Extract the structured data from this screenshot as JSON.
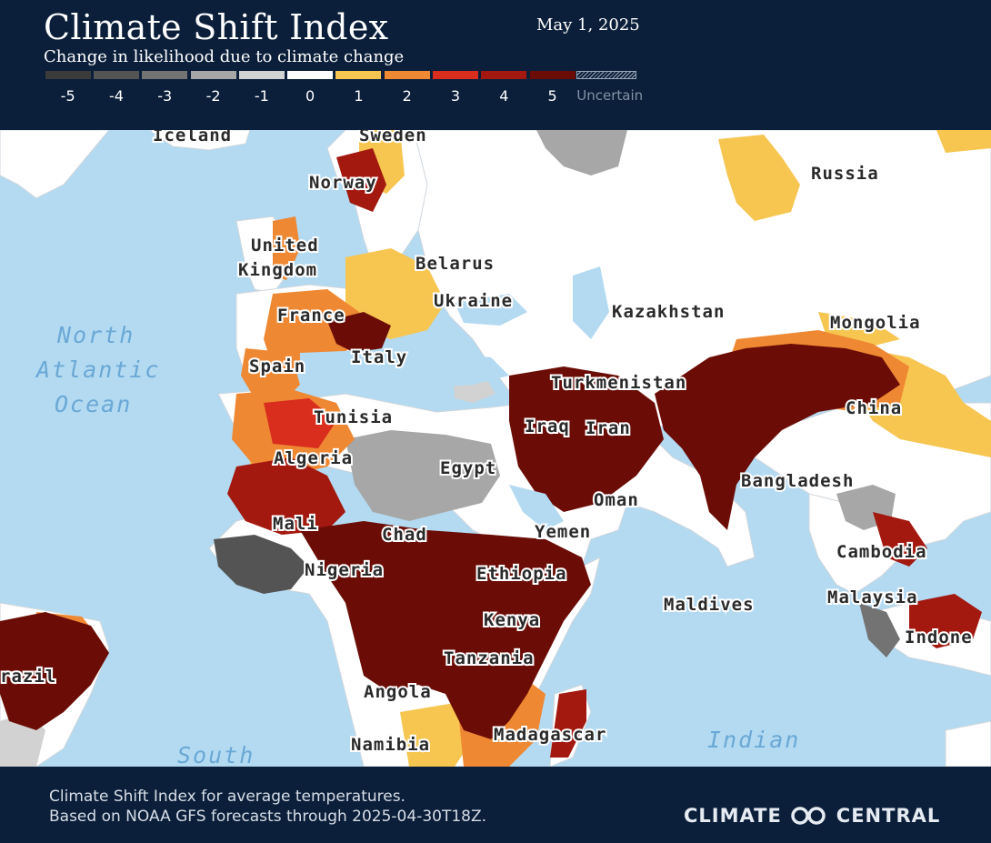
{
  "header": {
    "title": "Climate Shift Index",
    "subtitle": "Change in likelihood due to climate change",
    "date": "May 1, 2025"
  },
  "legend": [
    {
      "label": "-5",
      "color": "#3b3b3b"
    },
    {
      "label": "-4",
      "color": "#545454"
    },
    {
      "label": "-3",
      "color": "#737373"
    },
    {
      "label": "-2",
      "color": "#a7a7a7"
    },
    {
      "label": "-1",
      "color": "#d2d2d2"
    },
    {
      "label": "0",
      "color": "#ffffff"
    },
    {
      "label": "1",
      "color": "#f6c651"
    },
    {
      "label": "2",
      "color": "#ef8833"
    },
    {
      "label": "3",
      "color": "#d92d1e"
    },
    {
      "label": "4",
      "color": "#a3180f"
    },
    {
      "label": "5",
      "color": "#6b0d06"
    }
  ],
  "legend_uncertain": "Uncertain",
  "map": {
    "countries": [
      "Iceland",
      "Sweden",
      "Norway",
      "Russia",
      "United",
      "Kingdom",
      "Belarus",
      "Ukraine",
      "France",
      "Kazakhstan",
      "Mongolia",
      "Italy",
      "Spain",
      "Turkmenistan",
      "Tunisia",
      "China",
      "Iraq",
      "Iran",
      "Algeria",
      "Egypt",
      "Bangladesh",
      "Oman",
      "Mali",
      "Chad",
      "Yemen",
      "Cambodia",
      "Nigeria",
      "Ethiopia",
      "Maldives",
      "Malaysia",
      "Kenya",
      "Indone",
      "Tanzania",
      "razil",
      "Angola",
      "Madagascar",
      "Namibia"
    ],
    "oceans": [
      "North",
      "Atlantic",
      "Ocean",
      "Indian",
      "South"
    ]
  },
  "footer": {
    "line1": "Climate Shift Index for average temperatures.",
    "line2": "Based on NOAA GFS forecasts through 2025-04-30T18Z.",
    "brand_left": "CLIMATE",
    "brand_right": "CENTRAL"
  }
}
